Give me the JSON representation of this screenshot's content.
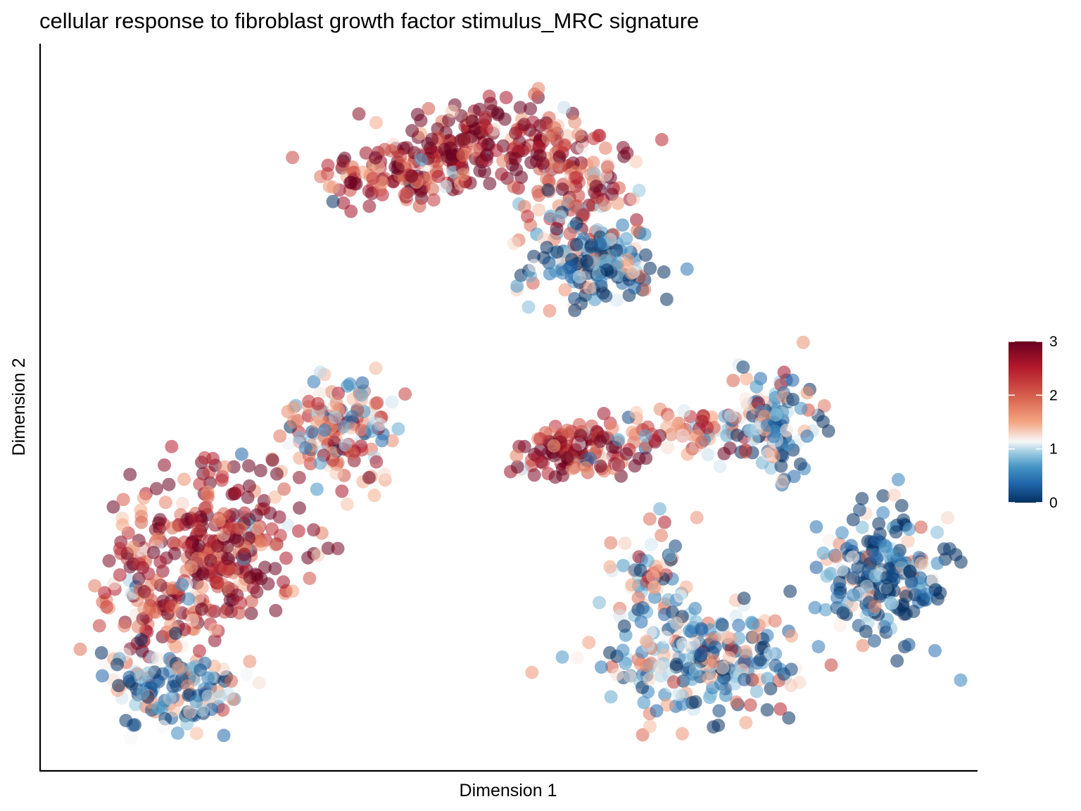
{
  "chart_data": {
    "type": "scatter",
    "title": "cellular response to fibroblast growth factor stimulus_MRC signature",
    "xlabel": "Dimension 1",
    "ylabel": "Dimension 2",
    "xlim": [
      0,
      1
    ],
    "ylim": [
      0,
      1
    ],
    "axis_ticks": false,
    "grid": false,
    "legend_position": "right",
    "colorbar": {
      "min": 0,
      "max": 3,
      "ticks": [
        0,
        1,
        2,
        3
      ],
      "tick_labels": [
        "0",
        "1",
        "2",
        "3"
      ],
      "colors": [
        "#053061",
        "#2166ac",
        "#4393c3",
        "#92c5de",
        "#f7f7f7",
        "#f4a582",
        "#d6604d",
        "#b2182b",
        "#67001f"
      ]
    },
    "clusters": [
      {
        "center": [
          0.38,
          0.84
        ],
        "spread": [
          0.06,
          0.03
        ],
        "value": 2.4,
        "n": 120
      },
      {
        "center": [
          0.47,
          0.89
        ],
        "spread": [
          0.06,
          0.035
        ],
        "value": 2.6,
        "n": 180
      },
      {
        "center": [
          0.58,
          0.84
        ],
        "spread": [
          0.04,
          0.05
        ],
        "value": 2.1,
        "n": 120
      },
      {
        "center": [
          0.6,
          0.71
        ],
        "spread": [
          0.045,
          0.04
        ],
        "value": 0.5,
        "n": 180
      },
      {
        "center": [
          0.31,
          0.47
        ],
        "spread": [
          0.045,
          0.05
        ],
        "value": 1.6,
        "n": 150
      },
      {
        "center": [
          0.17,
          0.3
        ],
        "spread": [
          0.06,
          0.08
        ],
        "value": 2.5,
        "n": 300
      },
      {
        "center": [
          0.1,
          0.21
        ],
        "spread": [
          0.04,
          0.06
        ],
        "value": 2.0,
        "n": 100
      },
      {
        "center": [
          0.12,
          0.09
        ],
        "spread": [
          0.05,
          0.035
        ],
        "value": 0.6,
        "n": 120
      },
      {
        "center": [
          0.58,
          0.44
        ],
        "spread": [
          0.05,
          0.025
        ],
        "value": 2.4,
        "n": 130
      },
      {
        "center": [
          0.71,
          0.47
        ],
        "spread": [
          0.05,
          0.02
        ],
        "value": 1.8,
        "n": 60
      },
      {
        "center": [
          0.8,
          0.48
        ],
        "spread": [
          0.035,
          0.05
        ],
        "value": 0.7,
        "n": 130
      },
      {
        "center": [
          0.93,
          0.25
        ],
        "spread": [
          0.045,
          0.06
        ],
        "value": 0.4,
        "n": 220
      },
      {
        "center": [
          0.67,
          0.25
        ],
        "spread": [
          0.03,
          0.05
        ],
        "value": 1.1,
        "n": 60
      },
      {
        "center": [
          0.72,
          0.13
        ],
        "spread": [
          0.07,
          0.045
        ],
        "value": 0.7,
        "n": 230
      }
    ]
  }
}
